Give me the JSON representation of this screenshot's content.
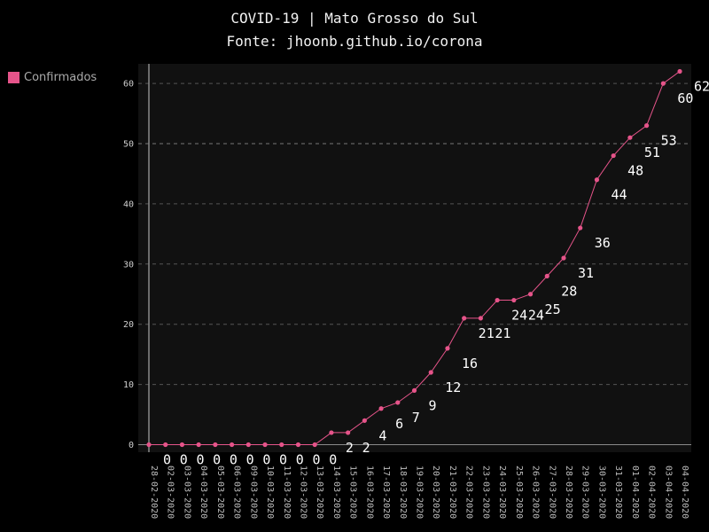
{
  "chart_data": {
    "type": "line",
    "title": "COVID-19 | Mato Grosso do Sul",
    "subtitle": "Fonte: jhoonb.github.io/corona",
    "xlabel": "",
    "ylabel": "",
    "ylim": [
      0,
      62
    ],
    "yticks": [
      0,
      10,
      20,
      30,
      40,
      50,
      60
    ],
    "grid": true,
    "legend_position": "left",
    "x": [
      "28-02-2020",
      "02-03-2020",
      "03-03-2020",
      "04-03-2020",
      "05-03-2020",
      "06-03-2020",
      "09-03-2020",
      "10-03-2020",
      "11-03-2020",
      "12-03-2020",
      "13-03-2020",
      "14-03-2020",
      "15-03-2020",
      "16-03-2020",
      "17-03-2020",
      "18-03-2020",
      "19-03-2020",
      "20-03-2020",
      "21-03-2020",
      "22-03-2020",
      "23-03-2020",
      "24-03-2020",
      "25-03-2020",
      "26-03-2020",
      "27-03-2020",
      "28-03-2020",
      "29-03-2020",
      "30-03-2020",
      "31-03-2020",
      "01-04-2020",
      "02-04-2020",
      "03-04-2020",
      "04-04-2020"
    ],
    "series": [
      {
        "name": "Confirmados",
        "color": "#e6548a",
        "values": [
          0,
          0,
          0,
          0,
          0,
          0,
          0,
          0,
          0,
          0,
          0,
          2,
          2,
          4,
          6,
          7,
          9,
          12,
          16,
          21,
          21,
          24,
          24,
          25,
          28,
          31,
          36,
          44,
          48,
          51,
          53,
          60,
          62
        ]
      }
    ]
  },
  "colors": {
    "background": "#000000",
    "plot_background": "#111111",
    "series": "#e6548a",
    "grid": "#555555"
  }
}
